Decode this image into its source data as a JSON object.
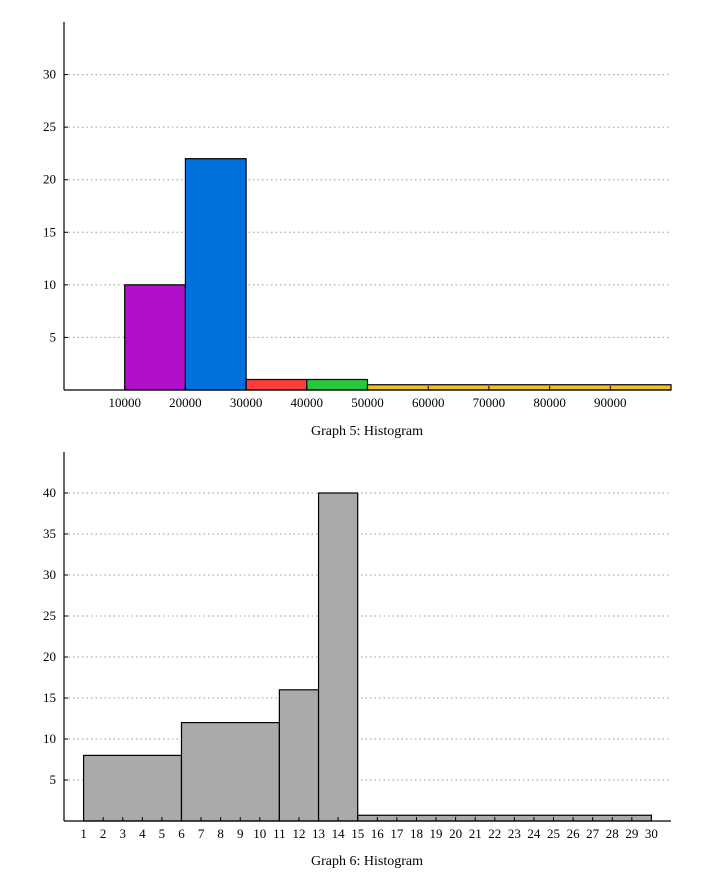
{
  "chart_data": [
    {
      "type": "bar",
      "title": "Graph 5: Histogram",
      "xlabel": "",
      "ylabel": "",
      "xlim": [
        0,
        100000
      ],
      "ylim": [
        0,
        35
      ],
      "grid": true,
      "x_ticks": [
        10000,
        20000,
        30000,
        40000,
        50000,
        60000,
        70000,
        80000,
        90000
      ],
      "y_ticks": [
        5,
        10,
        15,
        20,
        25,
        30
      ],
      "bins": [
        {
          "from": 10000,
          "to": 20000,
          "value": 10,
          "color": "#b010c8"
        },
        {
          "from": 20000,
          "to": 30000,
          "value": 22,
          "color": "#0070dc"
        },
        {
          "from": 30000,
          "to": 40000,
          "value": 1,
          "color": "#ff3c3c"
        },
        {
          "from": 40000,
          "to": 50000,
          "value": 1,
          "color": "#28c83c"
        },
        {
          "from": 50000,
          "to": 100000,
          "value": 0.5,
          "color": "#f0c028"
        }
      ]
    },
    {
      "type": "bar",
      "title": "Graph 6: Histogram",
      "xlabel": "",
      "ylabel": "",
      "xlim": [
        0,
        31
      ],
      "ylim": [
        0,
        45
      ],
      "grid": true,
      "x_ticks": [
        1,
        2,
        3,
        4,
        5,
        6,
        7,
        8,
        9,
        10,
        11,
        12,
        13,
        14,
        15,
        16,
        17,
        18,
        19,
        20,
        21,
        22,
        23,
        24,
        25,
        26,
        27,
        28,
        29,
        30
      ],
      "y_ticks": [
        5,
        10,
        15,
        20,
        25,
        30,
        35,
        40
      ],
      "bins": [
        {
          "from": 1,
          "to": 6,
          "value": 8,
          "color": "#aaaaaa"
        },
        {
          "from": 6,
          "to": 11,
          "value": 12,
          "color": "#aaaaaa"
        },
        {
          "from": 11,
          "to": 13,
          "value": 16,
          "color": "#aaaaaa"
        },
        {
          "from": 13,
          "to": 15,
          "value": 40,
          "color": "#aaaaaa"
        },
        {
          "from": 15,
          "to": 30,
          "value": 0.7,
          "color": "#aaaaaa"
        }
      ]
    }
  ]
}
